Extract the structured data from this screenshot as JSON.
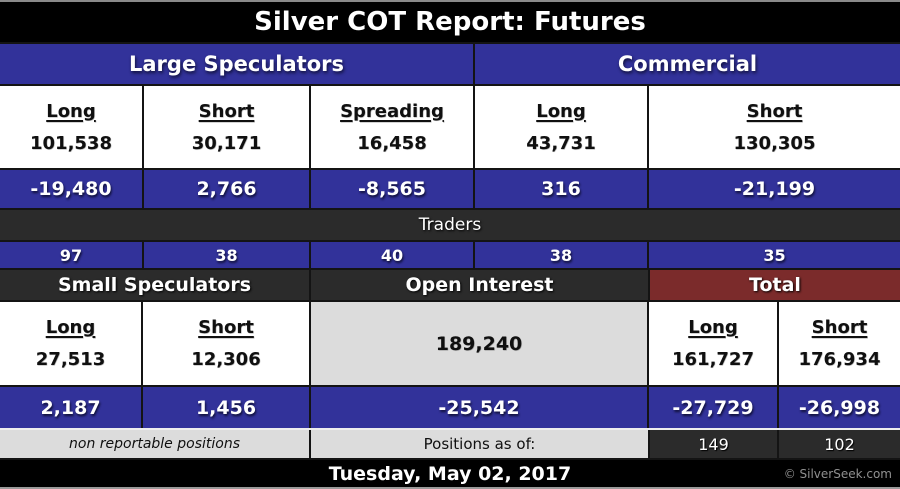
{
  "table": {
    "title": "Silver COT Report: Futures",
    "top": {
      "group1": "Large Speculators",
      "group2": "Commercial",
      "traders_label": "Traders",
      "cols": [
        {
          "h": "Long",
          "v": "101,538",
          "chg": "-19,480",
          "traders": "97"
        },
        {
          "h": "Short",
          "v": "30,171",
          "chg": "2,766",
          "traders": "38"
        },
        {
          "h": "Spreading",
          "v": "16,458",
          "chg": "-8,565",
          "traders": "40"
        },
        {
          "h": "Long",
          "v": "43,731",
          "chg": "316",
          "traders": "38"
        },
        {
          "h": "Short",
          "v": "130,305",
          "chg": "-21,199",
          "traders": "35"
        }
      ]
    },
    "bottom": {
      "group1": "Small Speculators",
      "group2": "Open Interest",
      "group3": "Total",
      "cols": [
        {
          "h": "Long",
          "v": "27,513",
          "chg": "2,187"
        },
        {
          "h": "Short",
          "v": "12,306",
          "chg": "1,456"
        }
      ],
      "open_interest": {
        "v": "189,240",
        "chg": "-25,542"
      },
      "total_cols": [
        {
          "h": "Long",
          "v": "161,727",
          "chg": "-27,729",
          "traders": "149"
        },
        {
          "h": "Short",
          "v": "176,934",
          "chg": "-26,998",
          "traders": "102"
        }
      ],
      "non_reportable": "non reportable positions",
      "positions_as_of": "Positions as of:"
    },
    "footer": {
      "date": "Tuesday, May 02, 2017",
      "copyright": "© SilverSeek.com"
    }
  },
  "colors": {
    "blue": "#32329a",
    "dark_gray": "#2b2b2b",
    "dark_red": "#7b2b2b",
    "light_gray": "#dcdcdc",
    "black": "#000000",
    "white": "#ffffff"
  },
  "chart_data": {
    "type": "table",
    "title": "Silver COT Report: Futures",
    "as_of_date": "Tuesday, May 02, 2017",
    "sections": {
      "large_speculators": {
        "long": 101538,
        "short": 30171,
        "spreading": 16458,
        "change": {
          "long": -19480,
          "short": 2766,
          "spreading": -8565
        },
        "traders": {
          "long": 97,
          "short": 38,
          "spreading": 40
        }
      },
      "commercial": {
        "long": 43731,
        "short": 130305,
        "change": {
          "long": 316,
          "short": -21199
        },
        "traders": {
          "long": 38,
          "short": 35
        }
      },
      "small_speculators": {
        "long": 27513,
        "short": 12306,
        "change": {
          "long": 2187,
          "short": 1456
        },
        "note": "non reportable positions"
      },
      "open_interest": {
        "value": 189240,
        "change": -25542
      },
      "total": {
        "long": 161727,
        "short": 176934,
        "change": {
          "long": -27729,
          "short": -26998
        },
        "traders": {
          "long": 149,
          "short": 102
        }
      }
    }
  }
}
